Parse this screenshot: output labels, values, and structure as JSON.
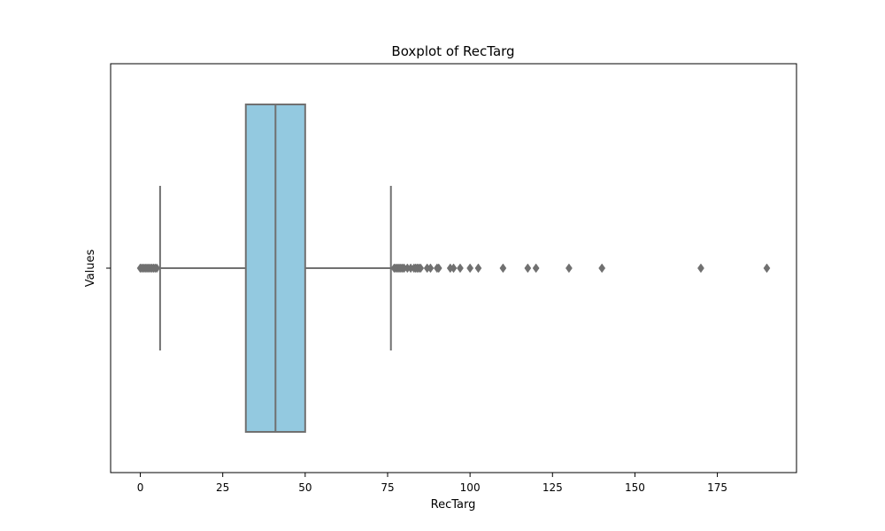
{
  "chart_data": {
    "type": "boxplot",
    "title": "Boxplot of RecTarg",
    "xlabel": "RecTarg",
    "ylabel": "Values",
    "xlim": [
      -9,
      199
    ],
    "xticks": [
      0,
      25,
      50,
      75,
      100,
      125,
      150,
      175
    ],
    "yticks": [
      ""
    ],
    "grid": false,
    "orientation": "horizontal",
    "box": {
      "whisker_low": 6,
      "q1": 32,
      "median": 41,
      "q3": 50,
      "whisker_high": 76
    },
    "outliers": [
      0,
      0.5,
      1,
      1.5,
      2,
      2.5,
      3,
      3.5,
      4,
      4.5,
      5,
      77,
      77.5,
      78,
      78.5,
      79,
      79.5,
      80,
      81,
      82,
      83,
      83.5,
      84,
      84.5,
      85,
      87,
      88,
      90,
      90.5,
      94,
      95,
      97,
      100,
      102.5,
      110,
      117.5,
      120,
      130,
      140,
      170,
      190
    ],
    "colors": {
      "box_fill": "#93c9e0",
      "line": "#707070",
      "outlier": "#707070"
    }
  }
}
